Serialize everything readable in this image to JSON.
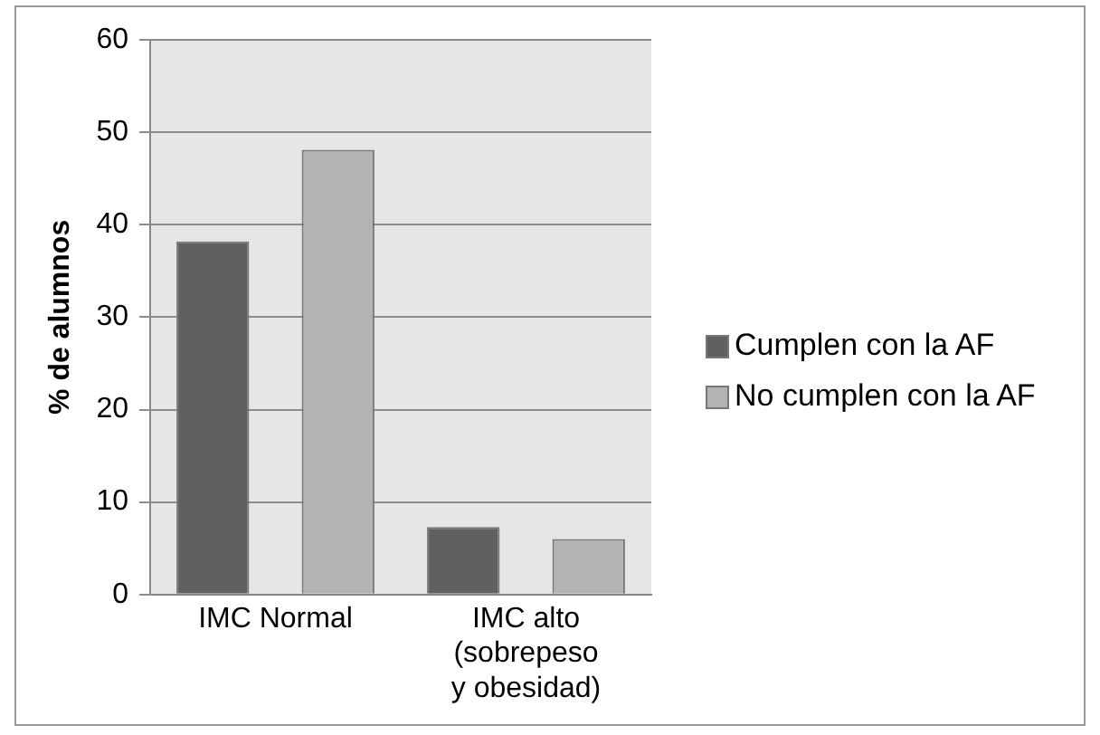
{
  "chart_data": {
    "type": "bar",
    "ylabel": "% de alumnos",
    "categories": [
      "IMC Normal",
      "IMC alto (sobrepeso y obesidad)"
    ],
    "series": [
      {
        "name": "Cumplen con la AF",
        "color": "#606060",
        "values": [
          38.2,
          7.3
        ]
      },
      {
        "name": "No cumplen con la AF",
        "color": "#b3b3b3",
        "values": [
          48.1,
          6.0
        ]
      }
    ],
    "ylim": [
      0,
      60
    ],
    "yticks": [
      0,
      10,
      20,
      30,
      40,
      50,
      60
    ],
    "grid": "y",
    "legend": "right"
  }
}
